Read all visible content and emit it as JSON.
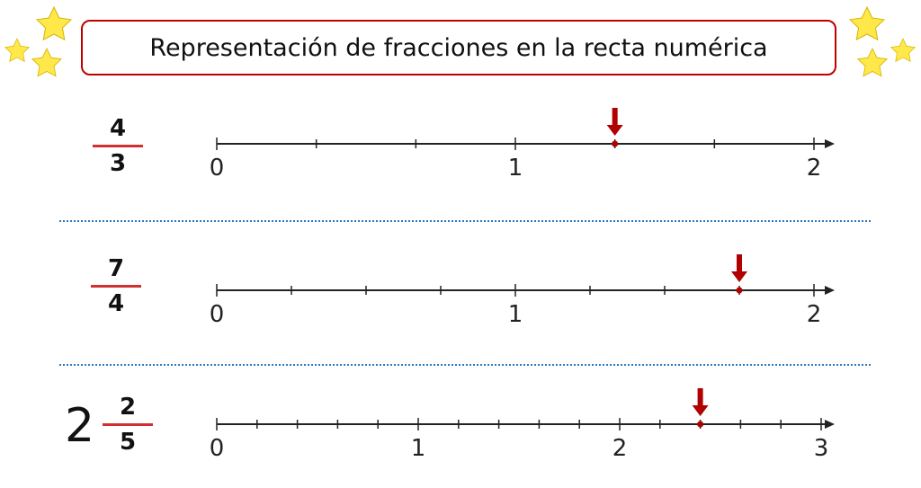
{
  "title": "Representación de fracciones en la recta numérica",
  "colors": {
    "accent": "#c00000",
    "arrow": "#b00000",
    "separator": "#2878c0",
    "star_fill": "#ffe84a",
    "star_stroke": "#d8b400"
  },
  "exercises": [
    {
      "whole": "",
      "numerator": "4",
      "denominator": "3",
      "max": 2,
      "divisions": 3,
      "labels": [
        "0",
        "1",
        "2"
      ],
      "value": 1.3333
    },
    {
      "whole": "",
      "numerator": "7",
      "denominator": "4",
      "max": 2,
      "divisions": 4,
      "labels": [
        "0",
        "1",
        "2"
      ],
      "value": 1.75
    },
    {
      "whole": "2",
      "numerator": "2",
      "denominator": "5",
      "max": 3,
      "divisions": 5,
      "labels": [
        "0",
        "1",
        "2",
        "3"
      ],
      "value": 2.4
    }
  ]
}
